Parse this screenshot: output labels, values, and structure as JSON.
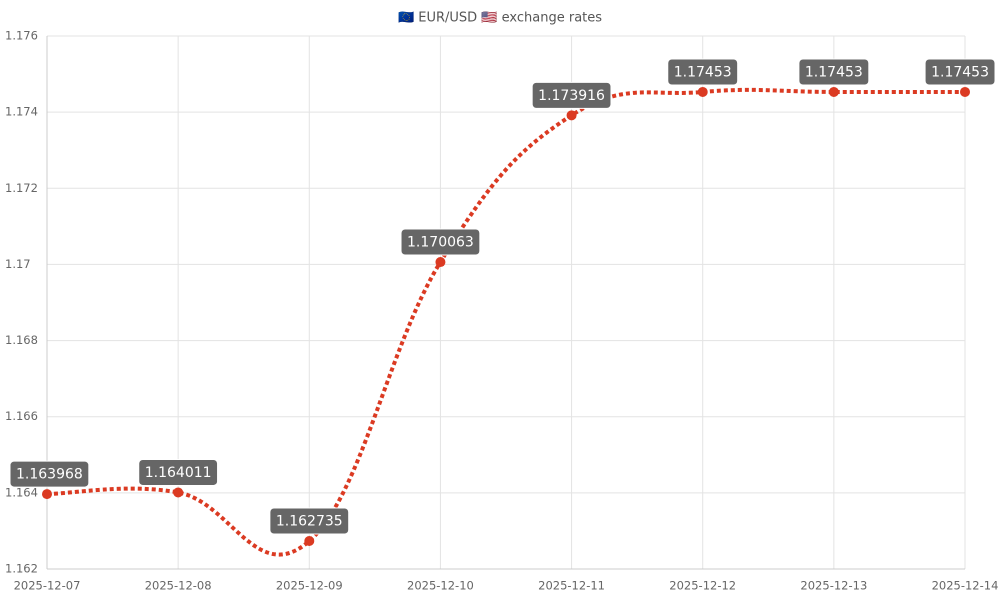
{
  "chart_data": {
    "type": "line",
    "title": "🇪🇺 EUR/USD 🇺🇸 exchange rates",
    "categories": [
      "2025-12-07",
      "2025-12-08",
      "2025-12-09",
      "2025-12-10",
      "2025-12-11",
      "2025-12-12",
      "2025-12-13",
      "2025-12-14"
    ],
    "series": [
      {
        "name": "EUR/USD",
        "color": "#db3a22",
        "values": [
          1.163968,
          1.164011,
          1.162735,
          1.170063,
          1.173916,
          1.17453,
          1.17453,
          1.17453
        ]
      }
    ],
    "ylim": [
      1.162,
      1.176
    ],
    "yticks": [
      1.162,
      1.164,
      1.166,
      1.168,
      1.17,
      1.172,
      1.174,
      1.176
    ],
    "grid": true
  }
}
